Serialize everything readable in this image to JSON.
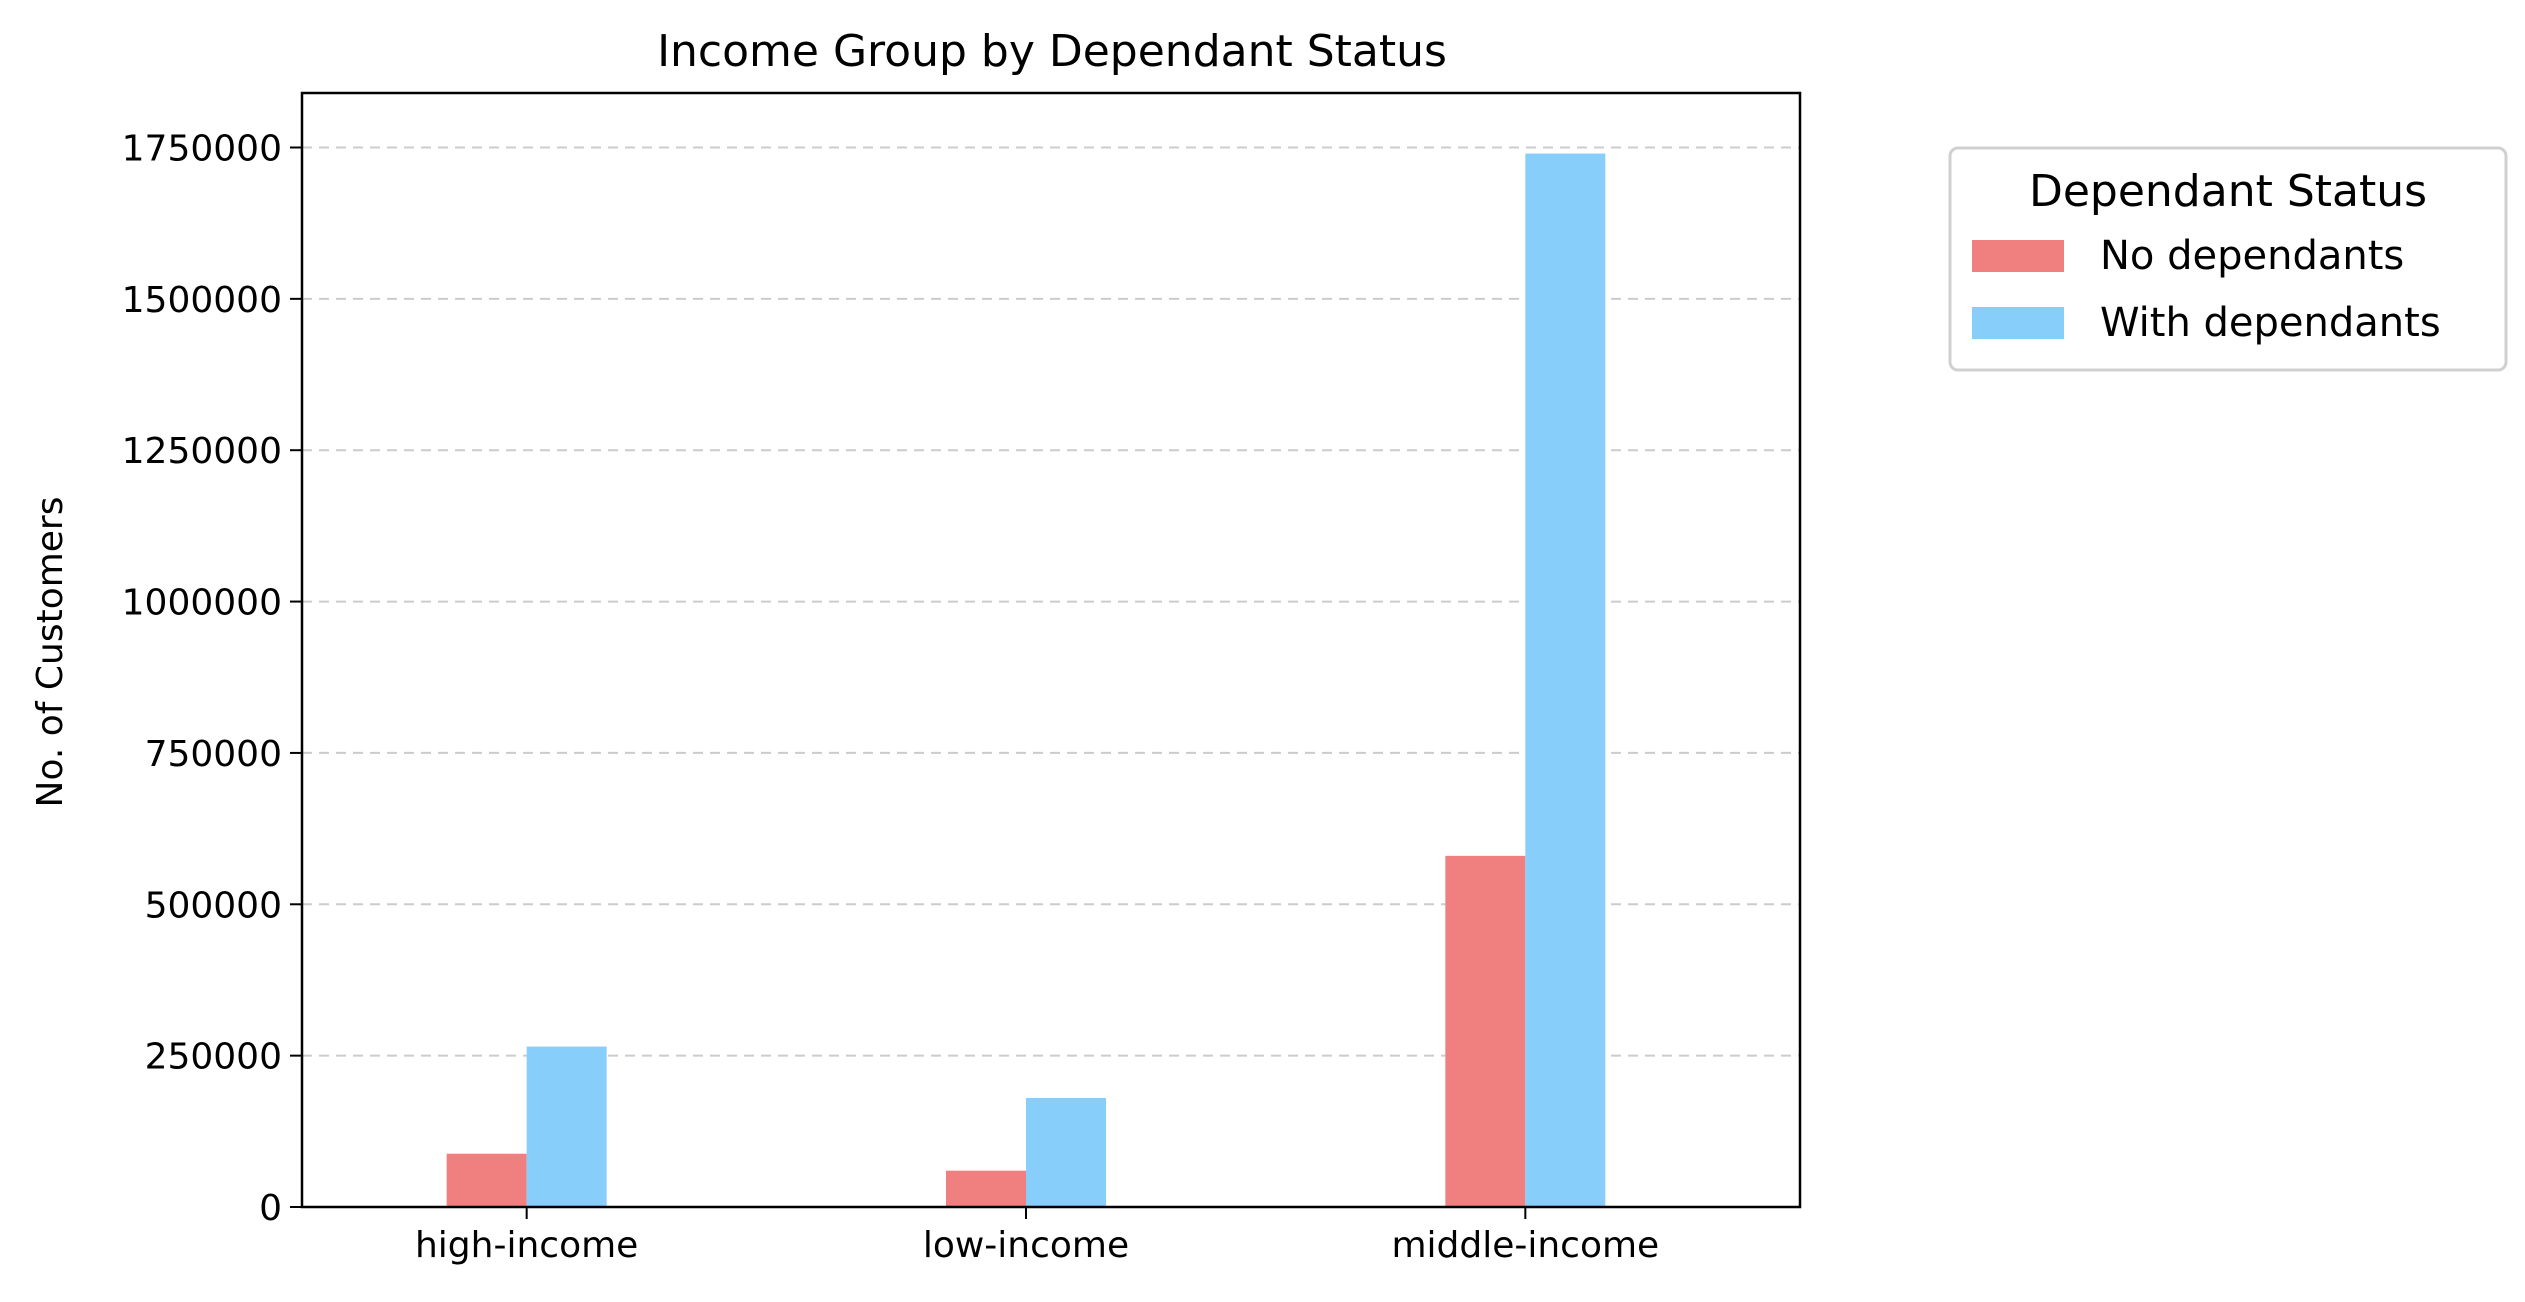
{
  "chart_data": {
    "type": "bar",
    "title": "Income Group by Dependant Status",
    "xlabel": "",
    "ylabel": "No. of Customers",
    "categories": [
      "high-income",
      "low-income",
      "middle-income"
    ],
    "series": [
      {
        "name": "No dependants",
        "values": [
          88000,
          60000,
          580000
        ],
        "color": "#F08080"
      },
      {
        "name": "With dependants",
        "values": [
          265000,
          180000,
          1740000
        ],
        "color": "#87CEFA"
      }
    ],
    "ylim": [
      0,
      1840000
    ],
    "yticks": [
      0,
      250000,
      500000,
      750000,
      1000000,
      1250000,
      1500000,
      1750000
    ],
    "ytick_labels": [
      "0",
      "250000",
      "500000",
      "750000",
      "1000000",
      "1250000",
      "1500000",
      "1750000"
    ],
    "grid": {
      "axis": "y",
      "style": "dashed",
      "color": "#cccccc"
    },
    "legend": {
      "title": "Dependant Status",
      "placement": "outside-right-top"
    }
  }
}
